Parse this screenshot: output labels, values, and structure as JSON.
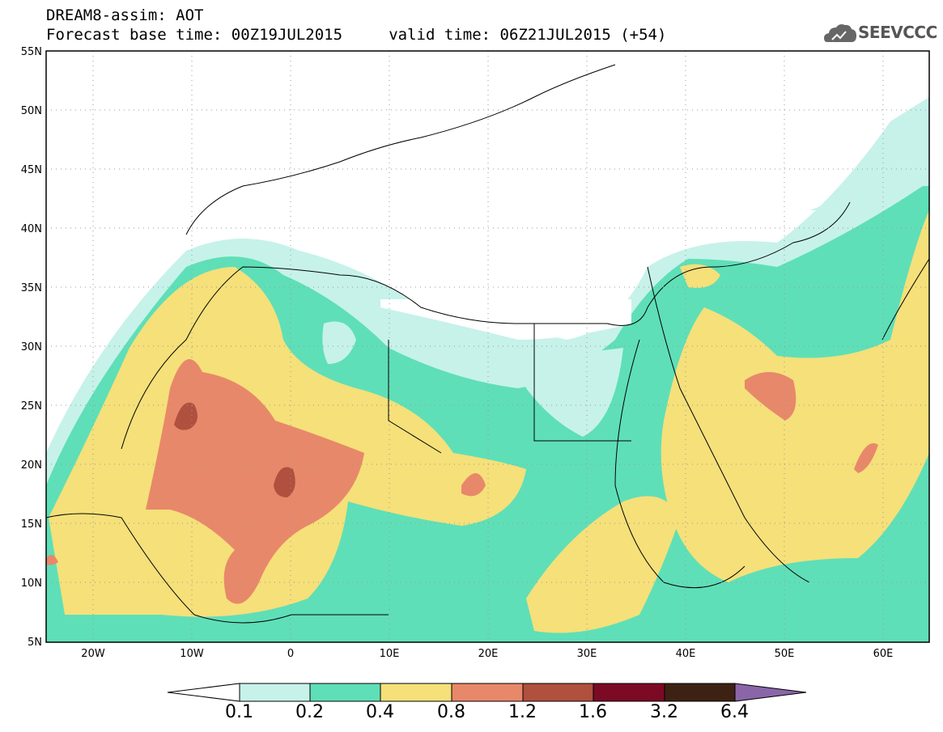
{
  "header": {
    "title": "DREAM8-assim: AOT",
    "subtitle": "Forecast base time: 00Z19JUL2015     valid time: 06Z21JUL2015 (+54)"
  },
  "logo": {
    "text": "SEEVCCC",
    "icon": "cloud-icon"
  },
  "axes": {
    "y_ticks": [
      "55N",
      "50N",
      "45N",
      "40N",
      "35N",
      "30N",
      "25N",
      "20N",
      "15N",
      "10N",
      "5N"
    ],
    "x_ticks": [
      "20W",
      "10W",
      "0",
      "10E",
      "20E",
      "30E",
      "40E",
      "50E",
      "60E"
    ]
  },
  "colorbar": {
    "labels": [
      "0.1",
      "0.2",
      "0.4",
      "0.8",
      "1.2",
      "1.6",
      "3.2",
      "6.4"
    ],
    "colors": [
      "#ffffff",
      "#c6f2ea",
      "#5fdfb7",
      "#f5e07a",
      "#e8886a",
      "#b0503e",
      "#7c0a24",
      "#3d2214",
      "#8a66a8"
    ]
  }
}
